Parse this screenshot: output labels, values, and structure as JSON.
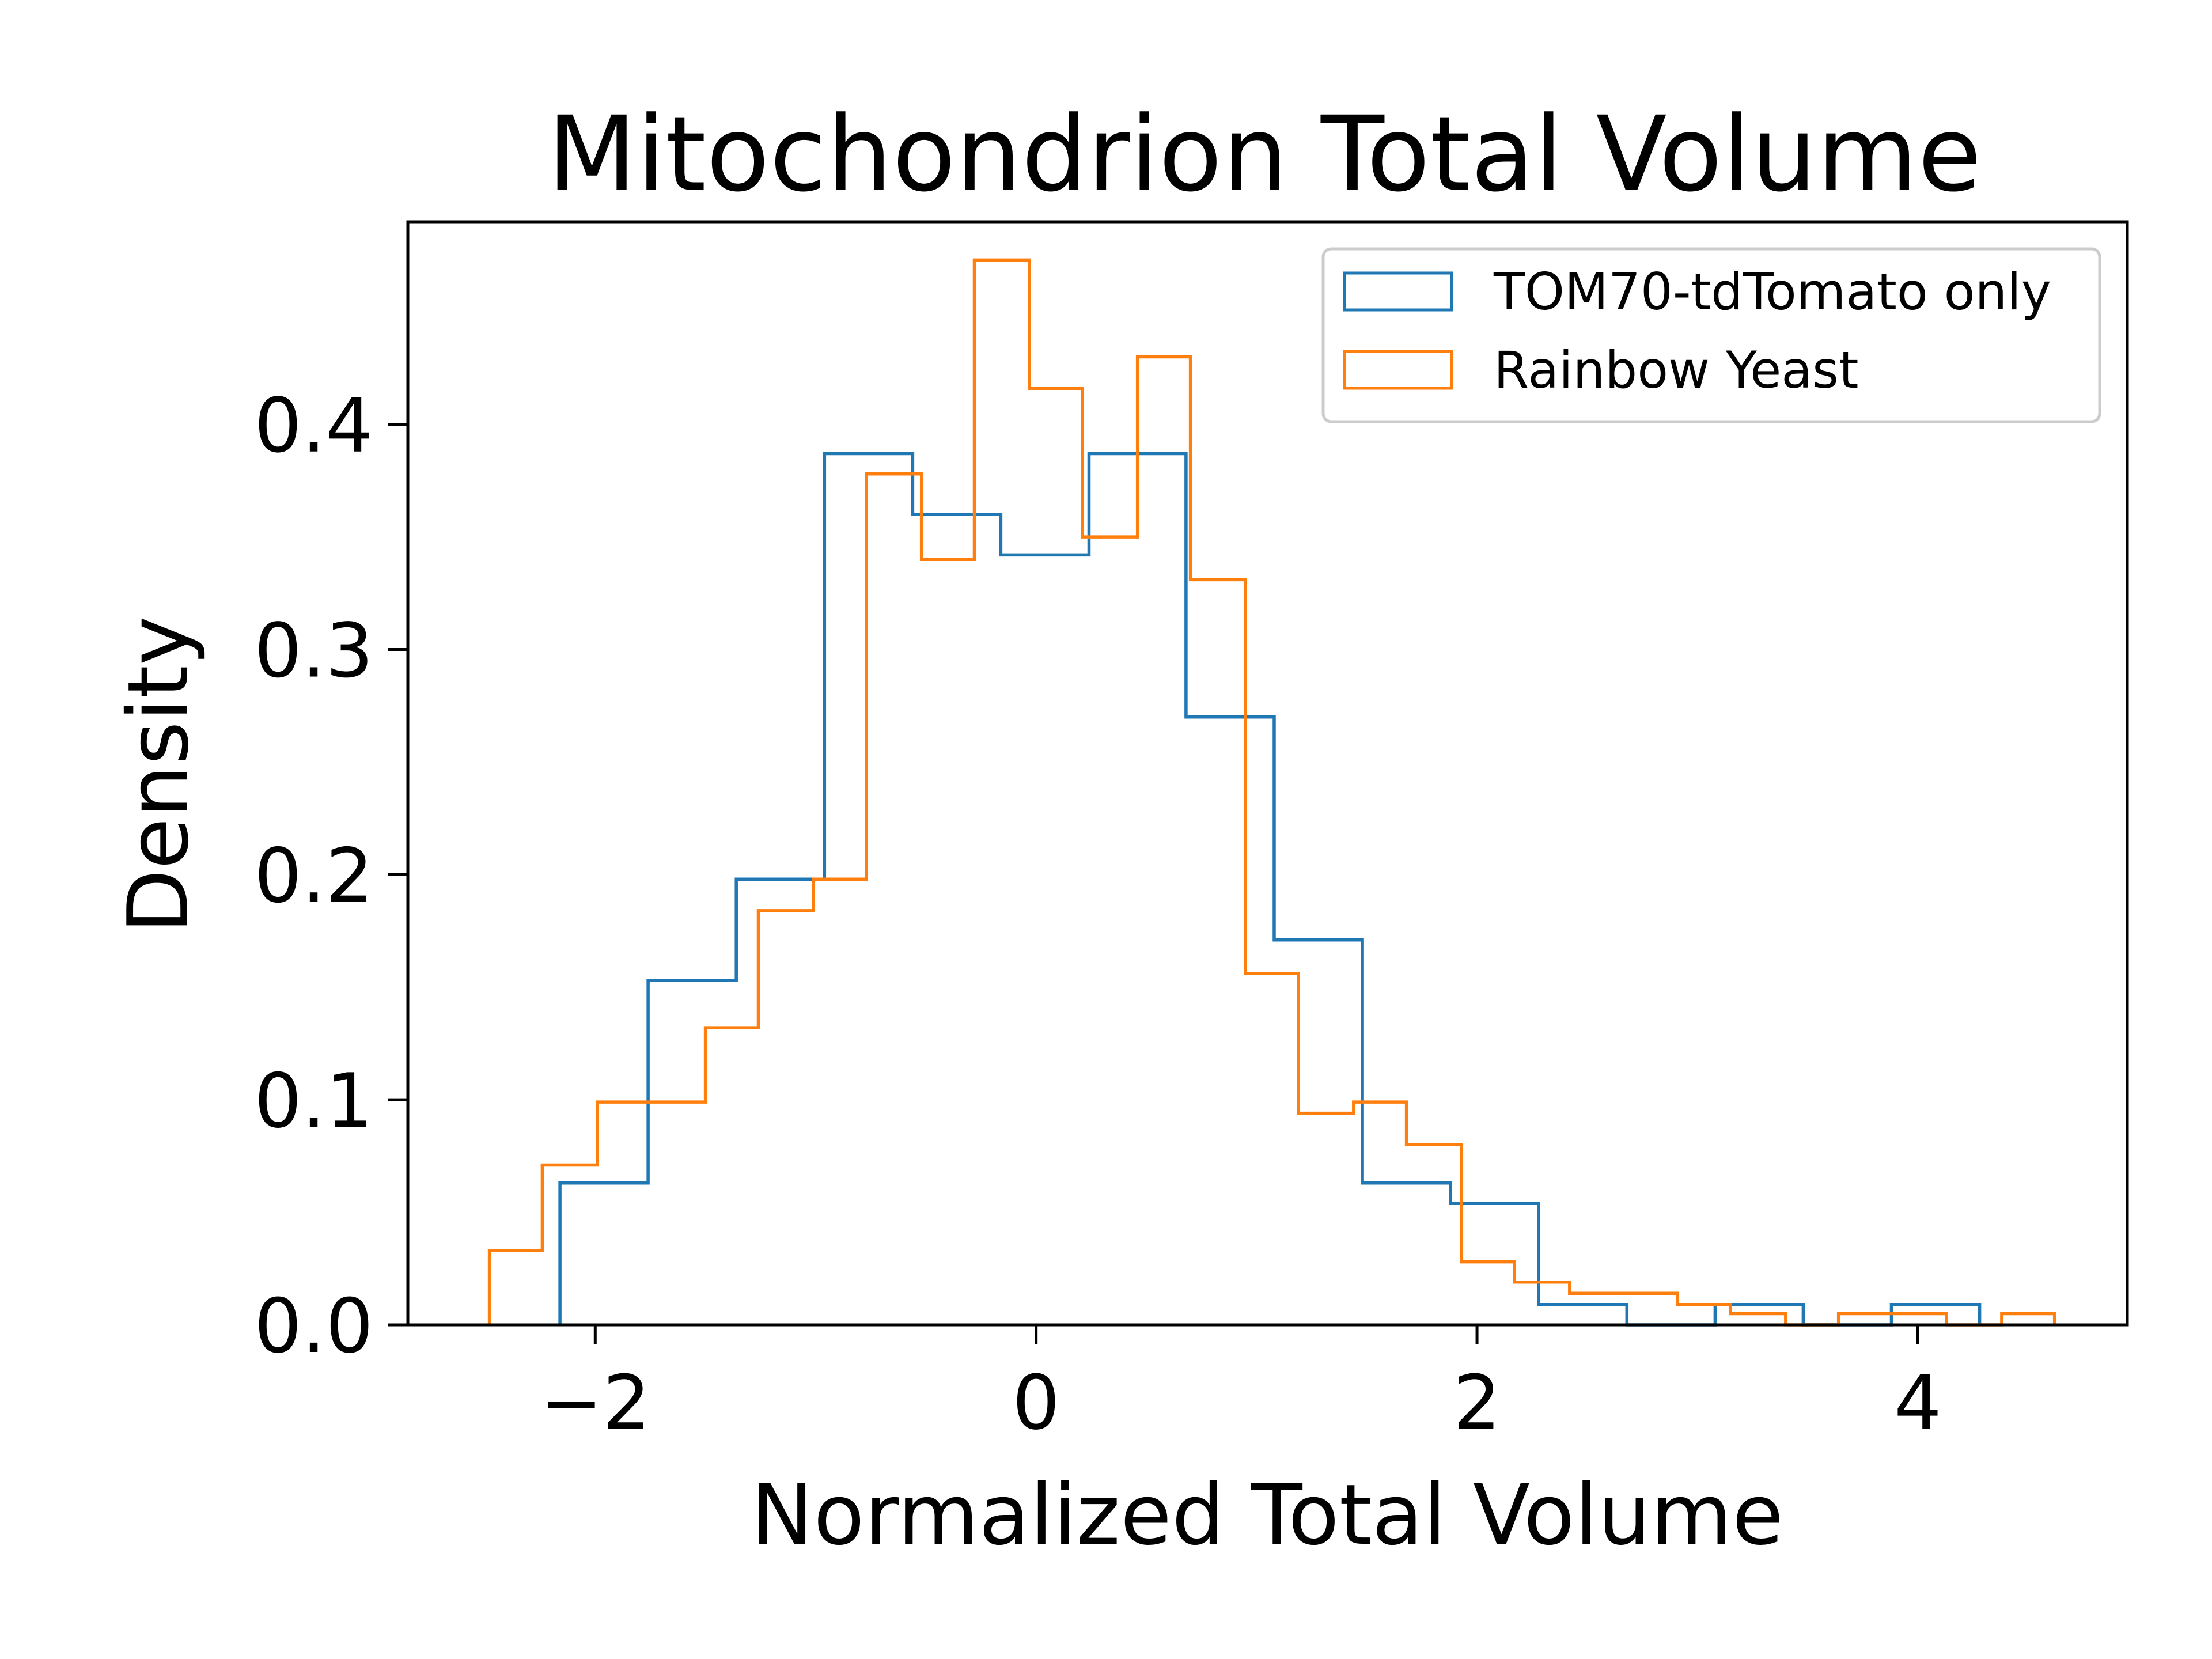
{
  "chart_data": {
    "type": "histogram",
    "title": "Mitochondrion Total Volume",
    "xlabel": "Normalized Total Volume",
    "ylabel": "Density",
    "xlim": [
      -2.85,
      4.95
    ],
    "ylim": [
      0,
      0.49
    ],
    "xticks": [
      -2,
      0,
      2,
      4
    ],
    "xtick_labels": [
      "−2",
      "0",
      "2",
      "4"
    ],
    "yticks": [
      0.0,
      0.1,
      0.2,
      0.3,
      0.4
    ],
    "ytick_labels": [
      "0.0",
      "0.1",
      "0.2",
      "0.3",
      "0.4"
    ],
    "grid": false,
    "legend_position": "upper right",
    "series": [
      {
        "name": "TOM70-tdTomato only",
        "color": "#1f77b4",
        "bin_edges": [
          -2.16,
          -1.76,
          -1.36,
          -0.96,
          -0.56,
          -0.16,
          0.24,
          0.68,
          1.08,
          1.48,
          1.88,
          2.28,
          2.68,
          3.08,
          3.48,
          3.88,
          4.28
        ],
        "values": [
          0.063,
          0.153,
          0.198,
          0.387,
          0.36,
          0.342,
          0.387,
          0.27,
          0.171,
          0.063,
          0.054,
          0.009,
          0.0,
          0.009,
          0.0,
          0.009
        ]
      },
      {
        "name": "Rainbow Yeast",
        "color": "#ff7f0e",
        "bin_edges": [
          -2.48,
          -2.24,
          -1.99,
          -1.75,
          -1.5,
          -1.26,
          -1.01,
          -0.77,
          -0.52,
          -0.28,
          -0.03,
          0.21,
          0.46,
          0.7,
          0.95,
          1.19,
          1.44,
          1.68,
          1.93,
          2.17,
          2.42,
          2.66,
          2.91,
          3.15,
          3.4,
          3.64,
          3.89,
          4.13,
          4.38,
          4.62
        ],
        "values": [
          0.033,
          0.071,
          0.099,
          0.099,
          0.132,
          0.184,
          0.198,
          0.378,
          0.34,
          0.473,
          0.416,
          0.35,
          0.43,
          0.331,
          0.156,
          0.094,
          0.099,
          0.08,
          0.028,
          0.019,
          0.014,
          0.014,
          0.009,
          0.005,
          0.0,
          0.005,
          0.005,
          0.0,
          0.005
        ]
      }
    ]
  }
}
